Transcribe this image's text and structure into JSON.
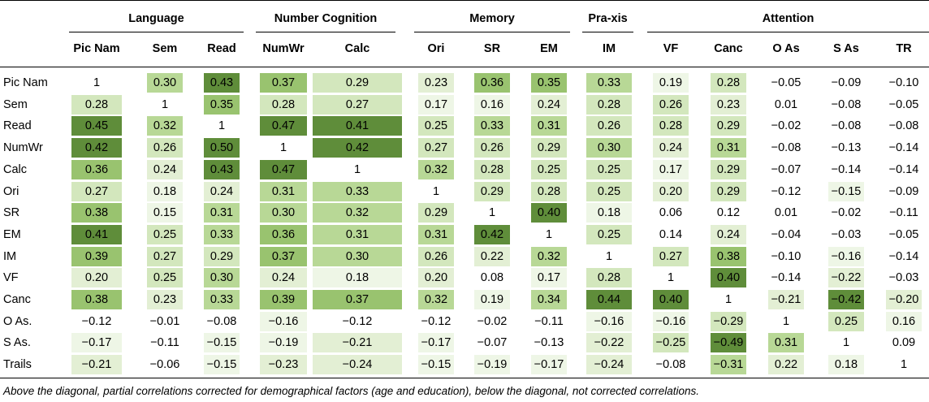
{
  "table": {
    "groups": [
      {
        "label": "Language",
        "span": 3
      },
      {
        "label": "Number Cognition",
        "span": 2
      },
      {
        "label": "Memory",
        "span": 3
      },
      {
        "label": "Pra-xis",
        "span": 1
      },
      {
        "label": "Attention",
        "span": 5
      }
    ],
    "columns": [
      "Pic Nam",
      "Sem",
      "Read",
      "NumWr",
      "Calc",
      "Ori",
      "SR",
      "EM",
      "IM",
      "VF",
      "Canc",
      "O As",
      "S As",
      "TR"
    ],
    "rows": [
      {
        "label": "Pic Nam",
        "values": [
          "1",
          "0.30",
          "0.43",
          "0.37",
          "0.29",
          "0.23",
          "0.36",
          "0.35",
          "0.33",
          "0.19",
          "0.28",
          "−0.05",
          "−0.09",
          "−0.10"
        ]
      },
      {
        "label": "Sem",
        "values": [
          "0.28",
          "1",
          "0.35",
          "0.28",
          "0.27",
          "0.17",
          "0.16",
          "0.24",
          "0.28",
          "0.26",
          "0.23",
          "0.01",
          "−0.08",
          "−0.05"
        ]
      },
      {
        "label": "Read",
        "values": [
          "0.45",
          "0.32",
          "1",
          "0.47",
          "0.41",
          "0.25",
          "0.33",
          "0.31",
          "0.26",
          "0.28",
          "0.29",
          "−0.02",
          "−0.08",
          "−0.08"
        ]
      },
      {
        "label": "NumWr",
        "values": [
          "0.42",
          "0.26",
          "0.50",
          "1",
          "0.42",
          "0.27",
          "0.26",
          "0.29",
          "0.30",
          "0.24",
          "0.31",
          "−0.08",
          "−0.13",
          "−0.14"
        ]
      },
      {
        "label": "Calc",
        "values": [
          "0.36",
          "0.24",
          "0.43",
          "0.47",
          "1",
          "0.32",
          "0.28",
          "0.25",
          "0.25",
          "0.17",
          "0.29",
          "−0.07",
          "−0.14",
          "−0.14"
        ]
      },
      {
        "label": "Ori",
        "values": [
          "0.27",
          "0.18",
          "0.24",
          "0.31",
          "0.33",
          "1",
          "0.29",
          "0.28",
          "0.25",
          "0.20",
          "0.29",
          "−0.12",
          "−0.15",
          "−0.09"
        ]
      },
      {
        "label": "SR",
        "values": [
          "0.38",
          "0.15",
          "0.31",
          "0.30",
          "0.32",
          "0.29",
          "1",
          "0.40",
          "0.18",
          "0.06",
          "0.12",
          "0.01",
          "−0.02",
          "−0.11"
        ]
      },
      {
        "label": "EM",
        "values": [
          "0.41",
          "0.25",
          "0.33",
          "0.36",
          "0.31",
          "0.31",
          "0.42",
          "1",
          "0.25",
          "0.14",
          "0.24",
          "−0.04",
          "−0.03",
          "−0.05"
        ]
      },
      {
        "label": "IM",
        "values": [
          "0.39",
          "0.27",
          "0.29",
          "0.37",
          "0.30",
          "0.26",
          "0.22",
          "0.32",
          "1",
          "0.27",
          "0.38",
          "−0.10",
          "−0.16",
          "−0.14"
        ]
      },
      {
        "label": "VF",
        "values": [
          "0.20",
          "0.25",
          "0.30",
          "0.24",
          "0.18",
          "0.20",
          "0.08",
          "0.17",
          "0.28",
          "1",
          "0.40",
          "−0.14",
          "−0.22",
          "−0.03"
        ]
      },
      {
        "label": "Canc",
        "values": [
          "0.38",
          "0.23",
          "0.33",
          "0.39",
          "0.37",
          "0.32",
          "0.19",
          "0.34",
          "0.44",
          "0.40",
          "1",
          "−0.21",
          "−0.42",
          "−0.20"
        ]
      },
      {
        "label": "O As.",
        "values": [
          "−0.12",
          "−0.01",
          "−0.08",
          "−0.16",
          "−0.12",
          "−0.12",
          "−0.02",
          "−0.11",
          "−0.16",
          "−0.16",
          "−0.29",
          "1",
          "0.25",
          "0.16"
        ]
      },
      {
        "label": "S As.",
        "values": [
          "−0.17",
          "−0.11",
          "−0.15",
          "−0.19",
          "−0.21",
          "−0.17",
          "−0.07",
          "−0.13",
          "−0.22",
          "−0.25",
          "−0.49",
          "0.31",
          "1",
          "0.09"
        ]
      },
      {
        "label": "Trails",
        "values": [
          "−0.21",
          "−0.06",
          "−0.15",
          "−0.23",
          "−0.24",
          "−0.15",
          "−0.19",
          "−0.17",
          "−0.24",
          "−0.08",
          "−0.31",
          "0.22",
          "0.18",
          "1"
        ]
      }
    ],
    "footnote": "Above the diagonal, partial correlations corrected for demographical factors (age and education), below the diagonal, not corrected correlations."
  }
}
